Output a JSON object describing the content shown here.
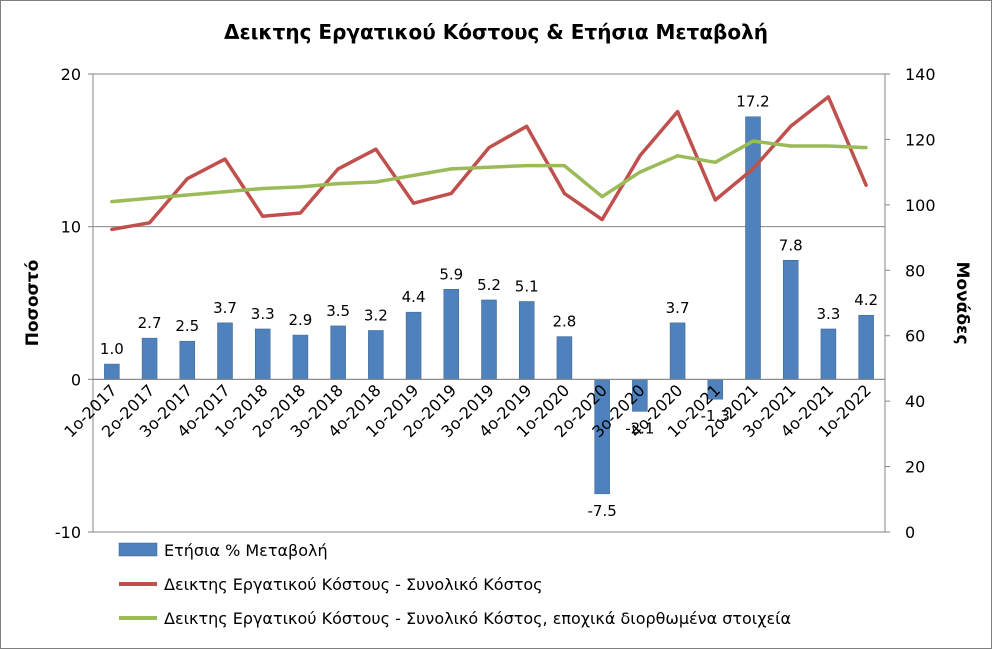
{
  "chart_data": {
    "type": "bar+line",
    "title": "Δεικτης Εργατικού Κόστους & Ετήσια Μεταβολή",
    "ylabel_left": "Ποσοστό",
    "ylabel_right": "Μονάδες",
    "ylim_left": [
      -10,
      20
    ],
    "yticks_left": [
      "-10",
      "0",
      "10",
      "20"
    ],
    "ylim_right": [
      0,
      140
    ],
    "yticks_right": [
      "0",
      "20",
      "40",
      "60",
      "80",
      "100",
      "120",
      "140"
    ],
    "gridlines": true,
    "legend_position": "bottom",
    "categories": [
      "1ο-2017",
      "2ο-2017",
      "3ο-2017",
      "4ο-2017",
      "1ο-2018",
      "2ο-2018",
      "3ο-2018",
      "4ο-2018",
      "1ο-2019",
      "2ο-2019",
      "3ο-2019",
      "4ο-2019",
      "1ο-2020",
      "2ο-2020",
      "3ο-2020",
      "4ο-2020",
      "1ο-2021",
      "2ο-2021",
      "3ο-2021",
      "4ο-2021",
      "1ο-2022"
    ],
    "series": [
      {
        "name": "Ετήσια % Μεταβολή",
        "type": "bar",
        "axis": "left",
        "color": "#4f81bd",
        "values": [
          1.0,
          2.7,
          2.5,
          3.7,
          3.3,
          2.9,
          3.5,
          3.2,
          4.4,
          5.9,
          5.2,
          5.1,
          2.8,
          -7.5,
          -2.1,
          3.7,
          -1.3,
          17.2,
          7.8,
          3.3,
          4.2
        ],
        "labels": [
          "1.0",
          "2.7",
          "2.5",
          "3.7",
          "3.3",
          "2.9",
          "3.5",
          "3.2",
          "4.4",
          "5.9",
          "5.2",
          "5.1",
          "2.8",
          "-7.5",
          "-2.1",
          "3.7",
          "-1.3",
          "17.2",
          "7.8",
          "3.3",
          "4.2"
        ]
      },
      {
        "name": "Δεικτης Εργατικού Κόστους - Συνολικό Κόστος",
        "type": "line",
        "axis": "right",
        "color": "#c0504d",
        "values": [
          92.5,
          94.5,
          108,
          114,
          96.5,
          97.5,
          111,
          117,
          100.5,
          103.5,
          117.5,
          124,
          103.5,
          95.5,
          115,
          128.5,
          101.5,
          111,
          124,
          133,
          106
        ]
      },
      {
        "name": "Δεικτης Εργατικού Κόστους - Συνολικό Κόστος, εποχικά διορθωμένα στοιχεία",
        "type": "line",
        "axis": "right",
        "color": "#9bbb59",
        "values": [
          101,
          102,
          103,
          104,
          105,
          105.5,
          106.5,
          107,
          109,
          111,
          111.5,
          112,
          112,
          102.5,
          110,
          115,
          113,
          119.5,
          118,
          118,
          117.5
        ]
      }
    ]
  }
}
